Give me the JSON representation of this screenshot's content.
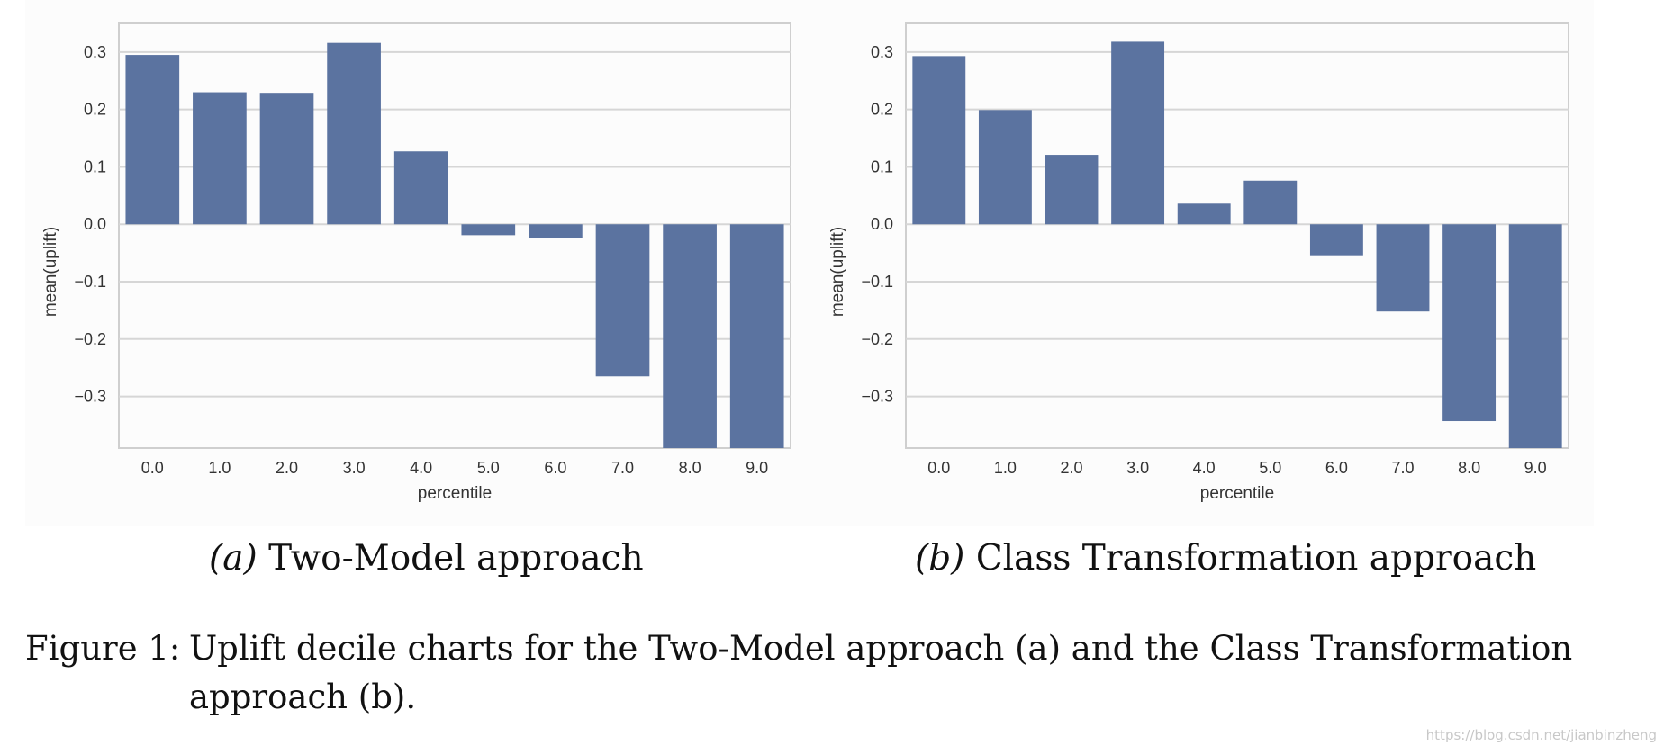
{
  "chart_data": [
    {
      "type": "bar",
      "xlabel": "percentile",
      "ylabel": "mean(uplift)",
      "categories": [
        "0.0",
        "1.0",
        "2.0",
        "3.0",
        "4.0",
        "5.0",
        "6.0",
        "7.0",
        "8.0",
        "9.0"
      ],
      "values": [
        0.295,
        0.23,
        0.229,
        0.316,
        0.127,
        -0.019,
        -0.024,
        -0.265,
        -0.39,
        -0.39
      ],
      "ylim": [
        -0.39,
        0.35
      ],
      "yticks": [
        "0.3",
        "0.2",
        "0.1",
        "0.0",
        "−0.1",
        "−0.2",
        "−0.3"
      ],
      "grid": true,
      "bar_color": "#5b73a0"
    },
    {
      "type": "bar",
      "xlabel": "percentile",
      "ylabel": "mean(uplift)",
      "categories": [
        "0.0",
        "1.0",
        "2.0",
        "3.0",
        "4.0",
        "5.0",
        "6.0",
        "7.0",
        "8.0",
        "9.0"
      ],
      "values": [
        0.293,
        0.199,
        0.121,
        0.318,
        0.036,
        0.076,
        -0.054,
        -0.152,
        -0.343,
        -0.39
      ],
      "ylim": [
        -0.39,
        0.35
      ],
      "yticks": [
        "0.3",
        "0.2",
        "0.1",
        "0.0",
        "−0.1",
        "−0.2",
        "−0.3"
      ],
      "grid": true,
      "bar_color": "#5b73a0"
    }
  ],
  "subcaptions": [
    {
      "tag": "(a)",
      "text": "Two-Model approach"
    },
    {
      "tag": "(b)",
      "text": "Class Transformation approach"
    }
  ],
  "figure_caption": {
    "label": "Figure 1:",
    "line1": "Uplift decile charts for the Two-Model approach (a) and the Class Transformation",
    "line2": "approach (b)."
  },
  "watermark": "https://blog.csdn.net/jianbinzheng"
}
